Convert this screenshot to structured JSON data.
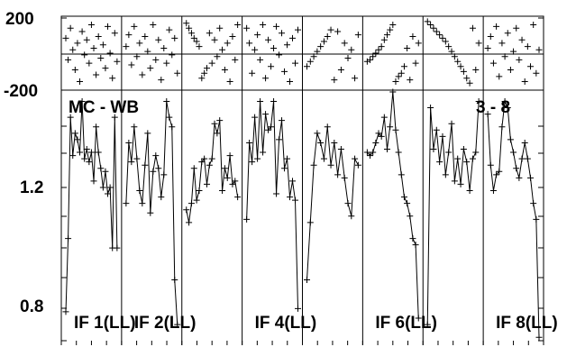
{
  "chart_data": {
    "type": "scatter+line",
    "title_left": "MC - WB",
    "title_right": "3 - 8",
    "phase_panel": {
      "y_ticks": [
        "200",
        "-200"
      ],
      "ylim": [
        -200,
        200
      ]
    },
    "amp_panel": {
      "y_ticks": [
        "1.2",
        "0.8"
      ],
      "ylim": [
        0.8,
        1.6
      ]
    },
    "if_labels": [
      {
        "text": "IF 1(LL)",
        "panel": 0
      },
      {
        "text": "IF 2(LL)",
        "panel": 1
      },
      {
        "text": "IF 4(LL)",
        "panel": 3
      },
      {
        "text": "IF 6(LL)",
        "panel": 5
      },
      {
        "text": "IF 8(LL)",
        "panel": 7
      }
    ],
    "panels": [
      {
        "phase": [
          90,
          -40,
          150,
          20,
          -100,
          60,
          -170,
          130,
          -10,
          80,
          -60,
          170,
          30,
          -130,
          100,
          -30,
          50,
          -90,
          160,
          0,
          -150,
          120,
          -50
        ],
        "amp": [
          0.82,
          1.05,
          1.43,
          1.31,
          1.38,
          1.36,
          1.32,
          1.48,
          1.3,
          1.33,
          1.29,
          1.32,
          1.23,
          1.4,
          1.32,
          1.27,
          1.21,
          1.26,
          1.19,
          1.21,
          1.02,
          1.43,
          1.02
        ]
      },
      {
        "phase": [
          40,
          110,
          -70,
          160,
          -20,
          60,
          -130,
          100,
          10,
          -90,
          170,
          -40,
          80,
          -160,
          30,
          -60,
          140,
          -10,
          90,
          -120
        ],
        "amp": [
          1.16,
          1.35,
          1.29,
          1.4,
          1.3,
          1.2,
          1.16,
          1.28,
          1.38,
          1.13,
          1.26,
          1.31,
          1.27,
          1.18,
          1.25,
          1.48,
          1.43,
          1.4,
          0.92,
          0.78
        ]
      },
      {
        "phase": [
          180,
          150,
          120,
          90,
          70,
          40,
          -150,
          -120,
          -90,
          120,
          -60,
          80,
          -20,
          150,
          20,
          -100,
          60,
          -170,
          100,
          -40,
          170
        ],
        "amp": [
          1.14,
          1.1,
          1.16,
          1.27,
          1.17,
          1.2,
          1.29,
          1.3,
          1.22,
          1.28,
          1.3,
          1.41,
          1.38,
          1.42,
          1.2,
          1.27,
          1.24,
          1.31,
          1.22,
          1.23,
          1.18
        ]
      },
      {
        "phase": [
          150,
          60,
          -120,
          20,
          110,
          -40,
          170,
          -150,
          80,
          -80,
          30,
          160,
          -10,
          120,
          -110,
          50,
          -170,
          90,
          -60,
          140
        ],
        "amp": [
          1.11,
          1.35,
          1.29,
          1.43,
          1.3,
          1.48,
          1.32,
          1.44,
          1.39,
          1.4,
          1.48,
          1.19,
          1.36,
          1.42,
          1.27,
          1.3,
          1.18,
          1.23,
          1.17,
          0.83
        ]
      },
      {
        "phase": [
          -80,
          -50,
          -20,
          10,
          40,
          70,
          100,
          140,
          -160,
          130,
          -100,
          60,
          -30,
          20,
          -150,
          110
        ],
        "amp": [
          0.92,
          1.1,
          1.28,
          1.38,
          1.35,
          1.3,
          1.4,
          1.28,
          1.35,
          1.25,
          1.33,
          1.24,
          1.16,
          1.12,
          1.3,
          1.28
        ]
      },
      {
        "phase": [
          -50,
          -40,
          -20,
          0,
          20,
          40,
          80,
          110,
          140,
          170,
          -170,
          -140,
          -120,
          -80,
          30,
          -160,
          100,
          -60,
          60
        ],
        "amp": [
          1.32,
          1.31,
          1.32,
          1.35,
          1.38,
          1.37,
          1.43,
          1.33,
          1.4,
          1.53,
          1.39,
          1.32,
          1.25,
          1.18,
          1.16,
          1.12,
          1.05,
          1.03,
          0.8
        ]
      },
      {
        "phase": [
          190,
          170,
          150,
          130,
          110,
          90,
          70,
          40,
          10,
          -20,
          -50,
          -80,
          -110,
          -150,
          -180,
          150,
          -100,
          60
        ],
        "amp": [
          0.78,
          1.46,
          1.33,
          1.39,
          1.29,
          1.37,
          1.25,
          1.32,
          1.41,
          1.23,
          1.3,
          1.22,
          1.33,
          1.29,
          1.2,
          1.3,
          1.32,
          1.48
        ]
      },
      {
        "phase": [
          30,
          100,
          -60,
          160,
          -140,
          60,
          -20,
          120,
          -100,
          10,
          150,
          -40,
          80,
          -170,
          40,
          -80,
          170,
          -120,
          20
        ],
        "amp": [
          1.44,
          1.28,
          1.2,
          1.25,
          1.26,
          1.4,
          1.48,
          1.46,
          1.36,
          1.32,
          1.27,
          1.24,
          1.3,
          1.35,
          1.3,
          1.24,
          1.16,
          1.11,
          0.74
        ]
      }
    ]
  }
}
